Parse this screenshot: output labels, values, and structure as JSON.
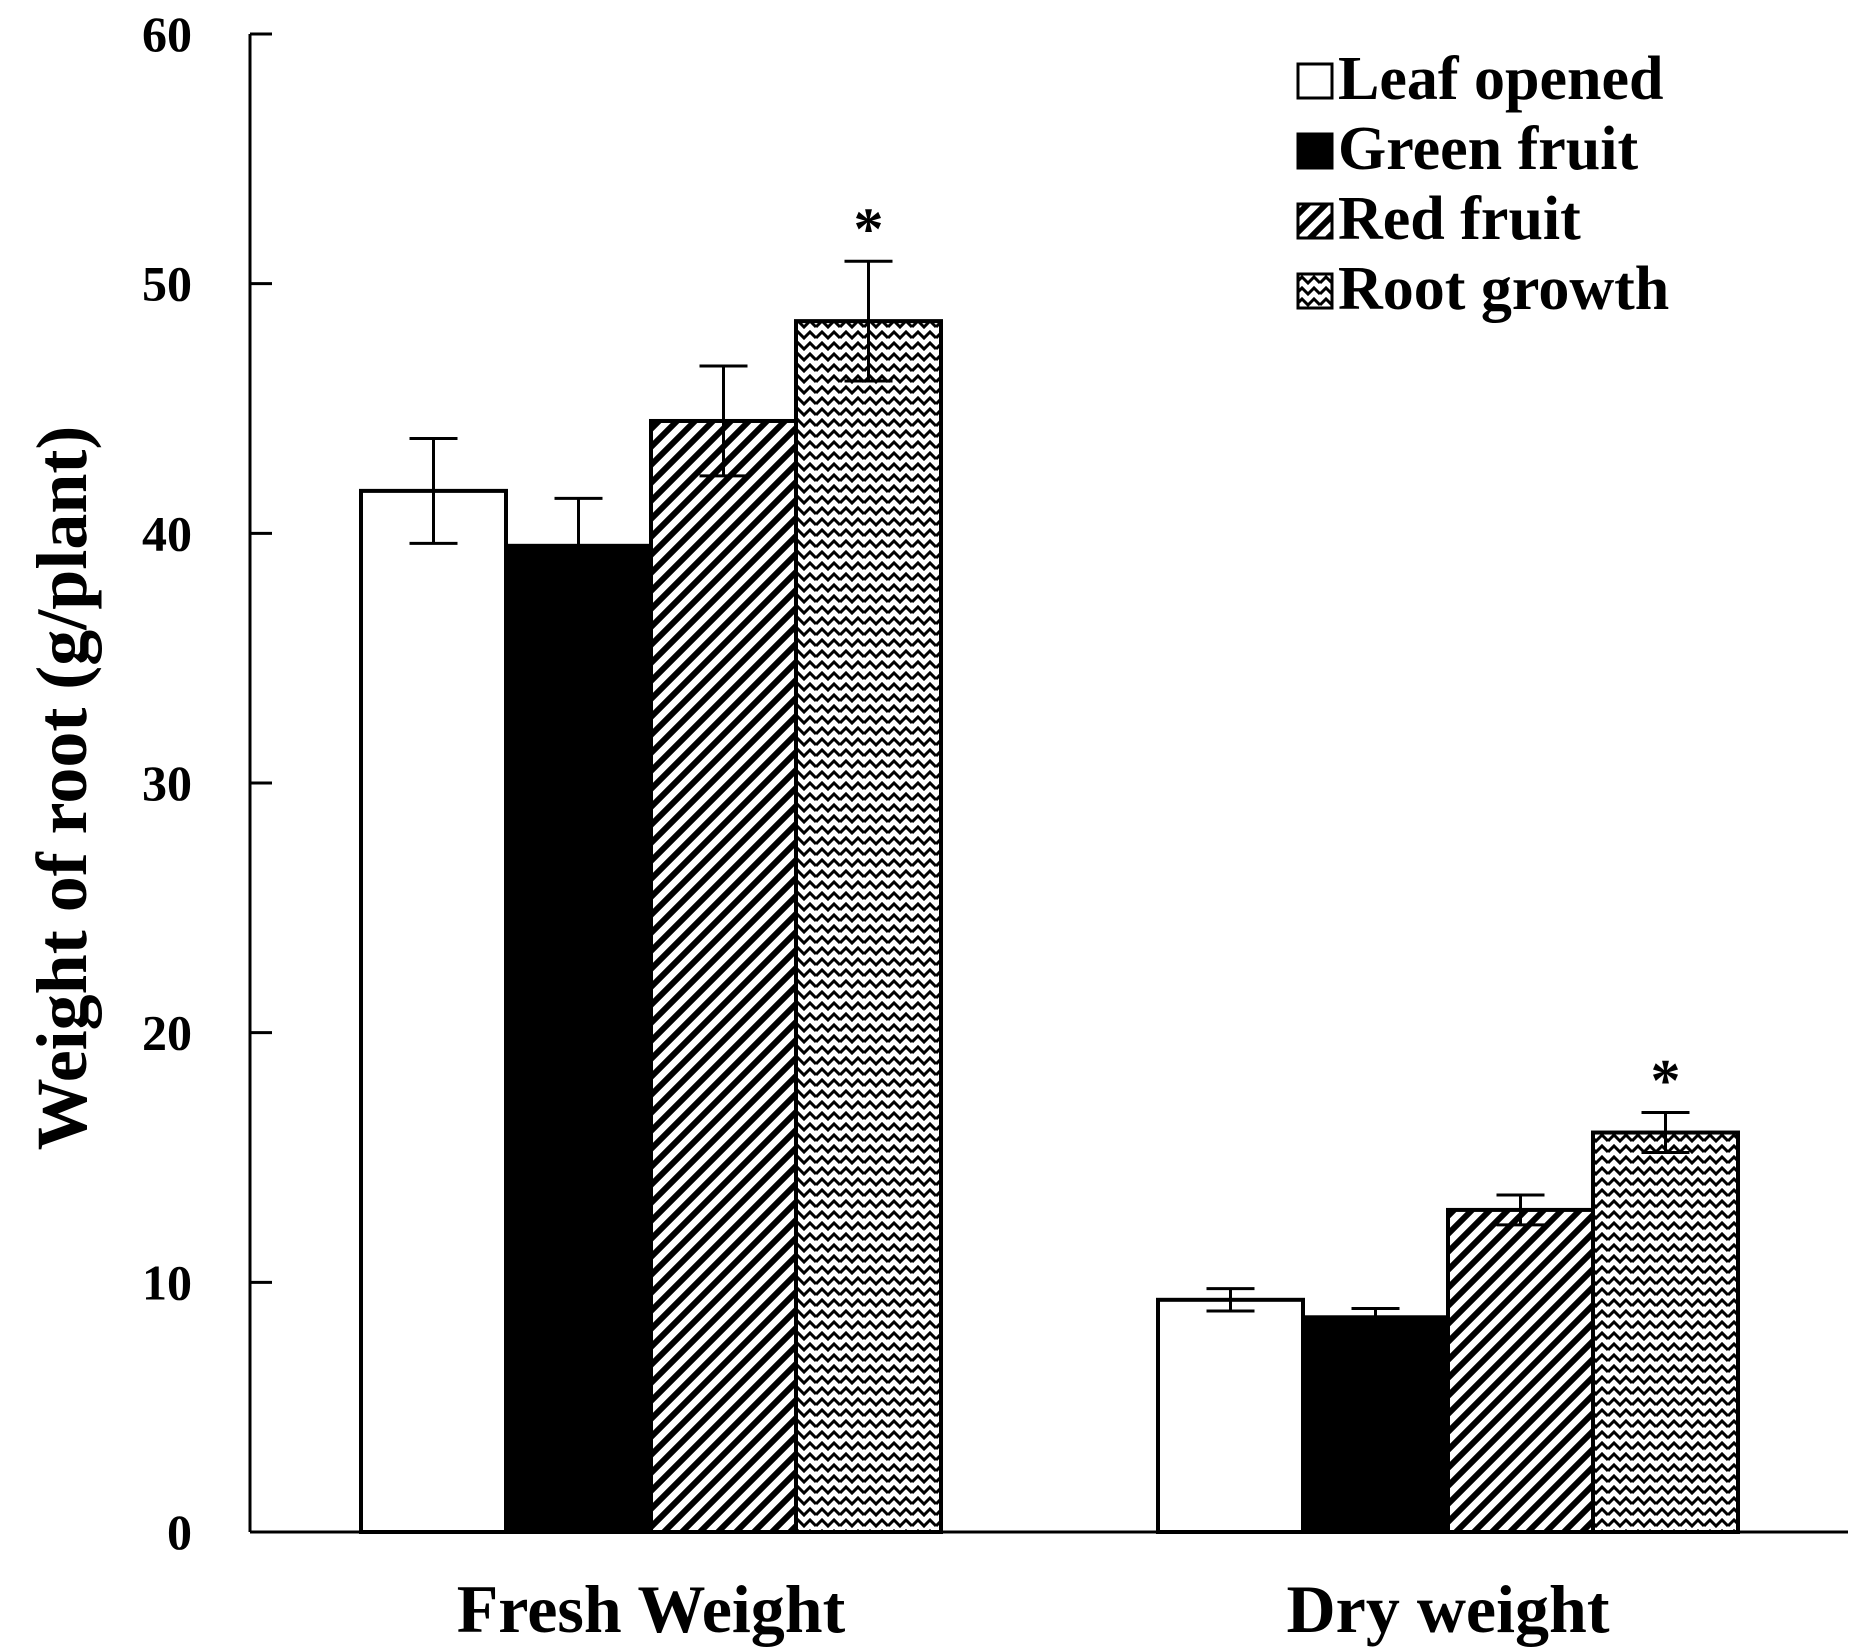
{
  "chart_data": {
    "type": "bar",
    "title": "",
    "xlabel": "",
    "ylabel": "Weight of root (g/plant)",
    "ylim": [
      0,
      60
    ],
    "yticks": [
      0,
      10,
      20,
      30,
      40,
      50,
      60
    ],
    "categories": [
      "Fresh Weight",
      "Dry weight"
    ],
    "legend_position": "top-right",
    "series": [
      {
        "name": "Leaf opened",
        "pattern": "white",
        "values": [
          41.7,
          9.3
        ],
        "errors": [
          2.1,
          0.45
        ],
        "annotations": [
          "",
          ""
        ]
      },
      {
        "name": "Green fruit",
        "pattern": "black",
        "values": [
          39.5,
          8.6
        ],
        "errors": [
          1.9,
          0.35
        ],
        "annotations": [
          "",
          ""
        ]
      },
      {
        "name": "Red fruit",
        "pattern": "diagonal",
        "values": [
          44.5,
          12.9
        ],
        "errors": [
          2.2,
          0.6
        ],
        "annotations": [
          "",
          ""
        ]
      },
      {
        "name": "Root growth",
        "pattern": "zigzag",
        "values": [
          48.5,
          16.0
        ],
        "errors": [
          2.4,
          0.8
        ],
        "annotations": [
          "*",
          "*"
        ]
      }
    ]
  },
  "colors": {
    "ink": "#000000",
    "paper": "#ffffff"
  }
}
